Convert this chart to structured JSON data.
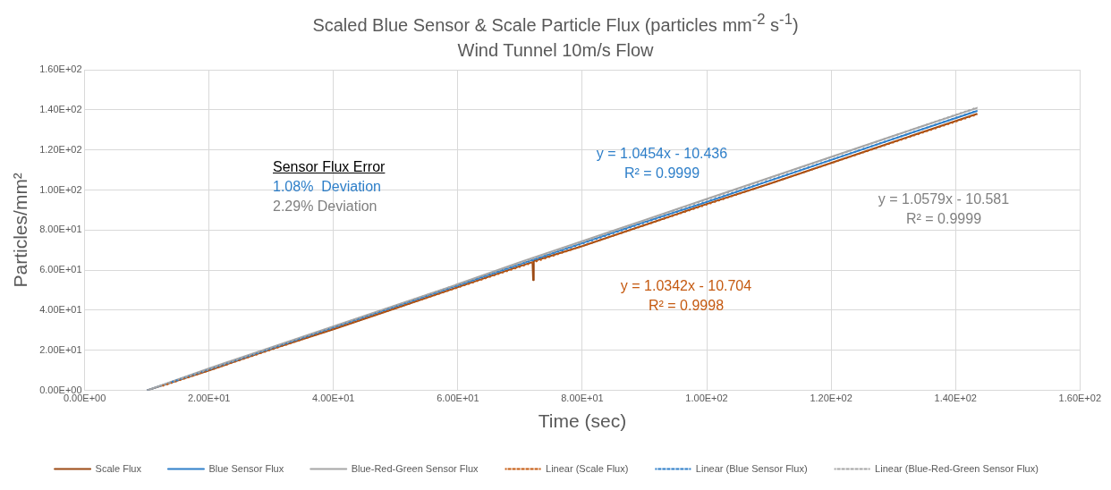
{
  "chart_data": {
    "type": "line",
    "title": "Scaled Blue Sensor & Scale Particle Flux (particles mm$^{-2}$ s$^{-1}$)",
    "subtitle": "Wind Tunnel 10m/s Flow",
    "xlabel": "Time (sec)",
    "ylabel": "Particles/mm²",
    "xlim": [
      0,
      160
    ],
    "ylim": [
      0,
      160
    ],
    "xticks": [
      {
        "value": 0,
        "label": "0.00E+00"
      },
      {
        "value": 20,
        "label": "2.00E+01"
      },
      {
        "value": 40,
        "label": "4.00E+01"
      },
      {
        "value": 60,
        "label": "6.00E+01"
      },
      {
        "value": 80,
        "label": "8.00E+01"
      },
      {
        "value": 100,
        "label": "1.00E+02"
      },
      {
        "value": 120,
        "label": "1.20E+02"
      },
      {
        "value": 140,
        "label": "1.40E+02"
      },
      {
        "value": 160,
        "label": "1.60E+02"
      }
    ],
    "yticks": [
      {
        "value": 0,
        "label": "0.00E+00"
      },
      {
        "value": 20,
        "label": "2.00E+01"
      },
      {
        "value": 40,
        "label": "4.00E+01"
      },
      {
        "value": 60,
        "label": "6.00E+01"
      },
      {
        "value": 80,
        "label": "8.00E+01"
      },
      {
        "value": 100,
        "label": "1.00E+02"
      },
      {
        "value": 120,
        "label": "1.20E+02"
      },
      {
        "value": 140,
        "label": "1.40E+02"
      },
      {
        "value": 160,
        "label": "1.60E+02"
      }
    ],
    "grid": true,
    "legend": "bottom",
    "marker": "none",
    "series": [
      {
        "name": "Scale Flux",
        "color": "#9c4a14",
        "line_style": "solid",
        "x": [
          10,
          20,
          30,
          40,
          50,
          60,
          70,
          72,
          72.1,
          72.2,
          80,
          90,
          100,
          110,
          120,
          130,
          143.5
        ],
        "values": [
          0,
          10,
          20.5,
          30.5,
          41,
          51.5,
          62,
          64,
          55,
          64.5,
          72,
          82.5,
          93,
          103,
          113.5,
          124,
          138
        ]
      },
      {
        "name": "Blue Sensor Flux",
        "color": "#2e7fc9",
        "line_style": "solid",
        "x": [
          10,
          20,
          30,
          40,
          50,
          60,
          70,
          80,
          90,
          100,
          110,
          120,
          130,
          143.5
        ],
        "values": [
          0,
          10.5,
          21,
          31.5,
          42,
          52.5,
          63,
          73.5,
          84,
          94,
          104.5,
          115,
          125.5,
          139.5
        ]
      },
      {
        "name": "Blue-Red-Green Sensor Flux",
        "color": "#a6a6a6",
        "line_style": "solid",
        "x": [
          10,
          20,
          30,
          40,
          50,
          60,
          70,
          80,
          90,
          100,
          110,
          120,
          130,
          143.5
        ],
        "values": [
          0,
          11,
          21.5,
          32,
          42.5,
          53,
          64,
          74.5,
          85,
          95.5,
          106,
          116.5,
          127,
          141
        ]
      },
      {
        "name": "Linear (Scale Flux)",
        "color": "#c55a11",
        "line_style": "dotted",
        "x": [
          12.5,
          143.5
        ],
        "values": [
          2.2,
          137.7
        ]
      },
      {
        "name": "Linear (Blue Sensor Flux)",
        "color": "#2e7fc9",
        "line_style": "dotted",
        "x": [
          14,
          143.5
        ],
        "values": [
          4.2,
          139.6
        ]
      },
      {
        "name": "Linear (Blue-Red-Green Sensor Flux)",
        "color": "#a6a6a6",
        "line_style": "dotted",
        "x": [
          15.5,
          143.5
        ],
        "values": [
          5.8,
          141.2
        ]
      }
    ],
    "annotations": [
      "y = 1.0454x - 10.436",
      "R² = 0.9999",
      "y = 1.0579x - 10.581",
      "R² = 0.9999",
      "y = 1.0342x - 10.704",
      "R² = 0.9998",
      "Sensor Flux Error",
      "1.08%  Deviation",
      "2.29% Deviation"
    ]
  }
}
